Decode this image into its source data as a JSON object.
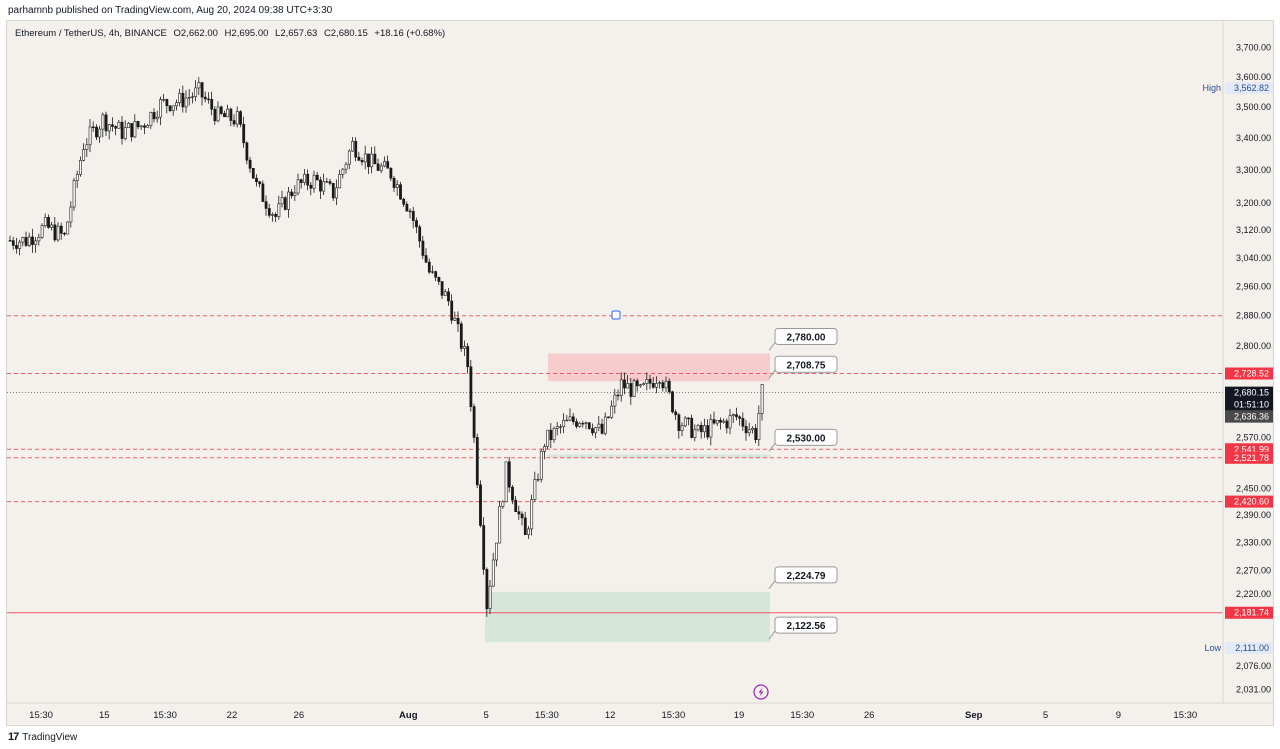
{
  "publisher_text": "parhamnb published on TradingView.com, Aug 20, 2024 09:38 UTC+3:30",
  "symbol": {
    "name": "Ethereum / TetherUS, 4h, BINANCE",
    "open": "O2,662.00",
    "high": "H2,695.00",
    "low": "L2,657.63",
    "close": "C2,680.15",
    "change": "+18.16 (+0.68%)"
  },
  "footer": {
    "brand": "TradingView"
  },
  "colors": {
    "background": "#f4f1ec",
    "candle_body": "#1a1a1a",
    "candle_wick": "#1a1a1a",
    "dashed_level": "#f23645",
    "red_tag": "#f23645",
    "dark_tag": "#131722",
    "grey_tag": "#4a4a4a",
    "supply_zone": "#f7c5c8",
    "demand_zone": "#d4e4d8",
    "label_border": "#9a9a9a"
  },
  "chart_data": {
    "type": "candlestick",
    "title": "Ethereum / TetherUS, 4h, BINANCE",
    "y_axis": {
      "scale": "log",
      "range": [
        2005,
        3790
      ],
      "ticks": [
        "3,700.00",
        "3,600.00",
        "3,500.00",
        "3,400.00",
        "3,300.00",
        "3,200.00",
        "3,120.00",
        "3,040.00",
        "2,960.00",
        "2,880.00",
        "2,800.00",
        "2,570.00",
        "2,450.00",
        "2,390.00",
        "2,330.00",
        "2,270.00",
        "2,220.00",
        "2,076.00",
        "2,031.00"
      ],
      "tick_values": [
        3700,
        3600,
        3500,
        3400,
        3300,
        3200,
        3120,
        3040,
        2960,
        2880,
        2800,
        2570,
        2450,
        2390,
        2330,
        2270,
        2220,
        2076,
        2031
      ]
    },
    "x_axis": {
      "ticks": [
        "15:30",
        "15",
        "15:30",
        "22",
        "26",
        "Aug",
        "5",
        "15:30",
        "12",
        "15:30",
        "19",
        "15:30",
        "26",
        "Sep",
        "5",
        "9",
        "15:30"
      ],
      "bold_ticks": [
        "Aug",
        "Sep"
      ]
    },
    "price_path": [
      [
        "Jul 12",
        3090
      ],
      [
        "Jul 13",
        3130
      ],
      [
        "Jul 14",
        3100
      ],
      [
        "Jul 15",
        3380
      ],
      [
        "Jul 16",
        3460
      ],
      [
        "Jul 17",
        3420
      ],
      [
        "Jul 18",
        3440
      ],
      [
        "Jul 19",
        3510
      ],
      [
        "Jul 20",
        3520
      ],
      [
        "Jul 21",
        3550
      ],
      [
        "Jul 22",
        3470
      ],
      [
        "Jul 23",
        3460
      ],
      [
        "Jul 24",
        3250
      ],
      [
        "Jul 25",
        3160
      ],
      [
        "Jul 26",
        3250
      ],
      [
        "Jul 27",
        3270
      ],
      [
        "Jul 28",
        3230
      ],
      [
        "Jul 29",
        3380
      ],
      [
        "Jul 30",
        3320
      ],
      [
        "Jul 31",
        3290
      ],
      [
        "Aug 1",
        3180
      ],
      [
        "Aug 2",
        3000
      ],
      [
        "Aug 3",
        2920
      ],
      [
        "Aug 4",
        2750
      ],
      [
        "Aug 5",
        2200
      ],
      [
        "Aug 6",
        2490
      ],
      [
        "Aug 7",
        2340
      ],
      [
        "Aug 8",
        2560
      ],
      [
        "Aug 9",
        2600
      ],
      [
        "Aug 10",
        2620
      ],
      [
        "Aug 11",
        2580
      ],
      [
        "Aug 12",
        2700
      ],
      [
        "Aug 13",
        2680
      ],
      [
        "Aug 14",
        2730
      ],
      [
        "Aug 15",
        2610
      ],
      [
        "Aug 16",
        2580
      ],
      [
        "Aug 17",
        2600
      ],
      [
        "Aug 18",
        2620
      ],
      [
        "Aug 19",
        2580
      ],
      [
        "Aug 20",
        2680
      ]
    ],
    "last": {
      "price": "2,680.15",
      "countdown": "01:51:10",
      "prev_close": "2,636.36"
    },
    "high": {
      "label": "High",
      "value": "3,562.82"
    },
    "low": {
      "label": "Low",
      "value": "2,111.00"
    },
    "levels": [
      {
        "value": 2728.52,
        "tag": "2,728.52",
        "style": "dashed"
      },
      {
        "value": 2541.99,
        "tag": "2,541.99",
        "style": "dashed"
      },
      {
        "value": 2521.78,
        "tag": "2,521.78",
        "style": "dashed"
      },
      {
        "value": 2420.6,
        "tag": "2,420.60",
        "style": "dashed"
      },
      {
        "value": 2181.74,
        "tag": "2,181.74",
        "style": "solid"
      },
      {
        "value": 2880,
        "tag": "",
        "style": "dashed"
      }
    ],
    "zones": [
      {
        "name": "supply",
        "top": 2780.0,
        "bottom": 2708.75
      },
      {
        "name": "range-support",
        "top": 2530.0,
        "bottom": 2521.78
      },
      {
        "name": "deep-demand",
        "top": 2224.79,
        "bottom": 2122.56
      }
    ],
    "price_labels": [
      "2,780.00",
      "2,708.75",
      "2,530.00",
      "2,224.79",
      "2,122.56"
    ]
  }
}
